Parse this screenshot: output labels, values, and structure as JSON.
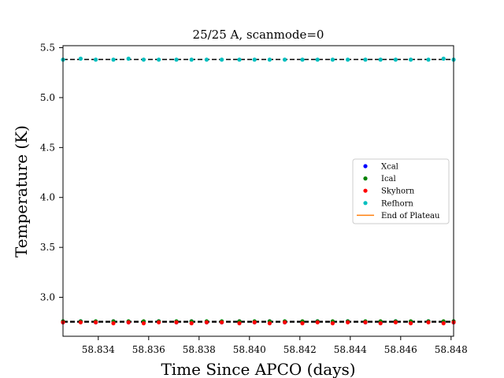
{
  "chart_data": {
    "type": "scatter",
    "title": "25/25 A, scanmode=0",
    "xlabel": "Time Since APCO (days)",
    "ylabel": "Temperature (K)",
    "xlim": [
      58.8326,
      58.8481
    ],
    "ylim": [
      2.61,
      5.52
    ],
    "xticks": [
      58.834,
      58.836,
      58.838,
      58.84,
      58.842,
      58.844,
      58.846,
      58.848
    ],
    "xtick_labels": [
      "58.834",
      "58.836",
      "58.838",
      "58.840",
      "58.842",
      "58.844",
      "58.846",
      "58.848"
    ],
    "yticks": [
      3.0,
      3.5,
      4.0,
      4.5,
      5.0,
      5.5
    ],
    "ytick_labels": [
      "3.0",
      "3.5",
      "4.0",
      "4.5",
      "5.0",
      "5.5"
    ],
    "x": [
      58.8326,
      58.8333,
      58.8339,
      58.8346,
      58.8352,
      58.8358,
      58.8364,
      58.8371,
      58.8377,
      58.8383,
      58.8389,
      58.8396,
      58.8402,
      58.8408,
      58.8414,
      58.8421,
      58.8427,
      58.8433,
      58.8439,
      58.8446,
      58.8452,
      58.8458,
      58.8464,
      58.8471,
      58.8477,
      58.8481
    ],
    "series": [
      {
        "name": "Xcal",
        "color": "#0000ff",
        "marker": "dot",
        "values": [
          2.75,
          2.76,
          2.75,
          2.76,
          2.75,
          2.75,
          2.76,
          2.75,
          2.76,
          2.75,
          2.75,
          2.76,
          2.75,
          2.76,
          2.75,
          2.75,
          2.76,
          2.75,
          2.76,
          2.75,
          2.75,
          2.76,
          2.75,
          2.76,
          2.75,
          2.75
        ]
      },
      {
        "name": "Ical",
        "color": "#008000",
        "marker": "dot",
        "values": [
          2.76,
          2.76,
          2.76,
          2.76,
          2.76,
          2.76,
          2.76,
          2.76,
          2.76,
          2.76,
          2.76,
          2.76,
          2.76,
          2.76,
          2.76,
          2.76,
          2.76,
          2.76,
          2.76,
          2.76,
          2.76,
          2.76,
          2.76,
          2.76,
          2.76,
          2.76
        ]
      },
      {
        "name": "Skyhorn",
        "color": "#ff0000",
        "marker": "dot",
        "values": [
          2.75,
          2.75,
          2.75,
          2.74,
          2.75,
          2.74,
          2.75,
          2.75,
          2.74,
          2.75,
          2.75,
          2.74,
          2.75,
          2.74,
          2.75,
          2.74,
          2.75,
          2.74,
          2.75,
          2.75,
          2.74,
          2.75,
          2.74,
          2.75,
          2.74,
          2.75
        ]
      },
      {
        "name": "Refhorn",
        "color": "#00bfbf",
        "marker": "dot",
        "values": [
          5.38,
          5.39,
          5.38,
          5.38,
          5.39,
          5.38,
          5.38,
          5.38,
          5.38,
          5.38,
          5.38,
          5.38,
          5.38,
          5.38,
          5.38,
          5.38,
          5.38,
          5.38,
          5.38,
          5.38,
          5.38,
          5.38,
          5.38,
          5.38,
          5.39,
          5.38
        ]
      },
      {
        "name": "End of Plateau",
        "color": "#ff7f0e",
        "marker": "line",
        "values": []
      }
    ],
    "hlines": [
      {
        "y": 5.382,
        "style": "dashed",
        "color": "#000000"
      },
      {
        "y": 2.758,
        "style": "dashed",
        "color": "#000000"
      },
      {
        "y": 2.752,
        "style": "dashed",
        "color": "#000000"
      }
    ],
    "legend_position": "center-right",
    "grid": false
  }
}
